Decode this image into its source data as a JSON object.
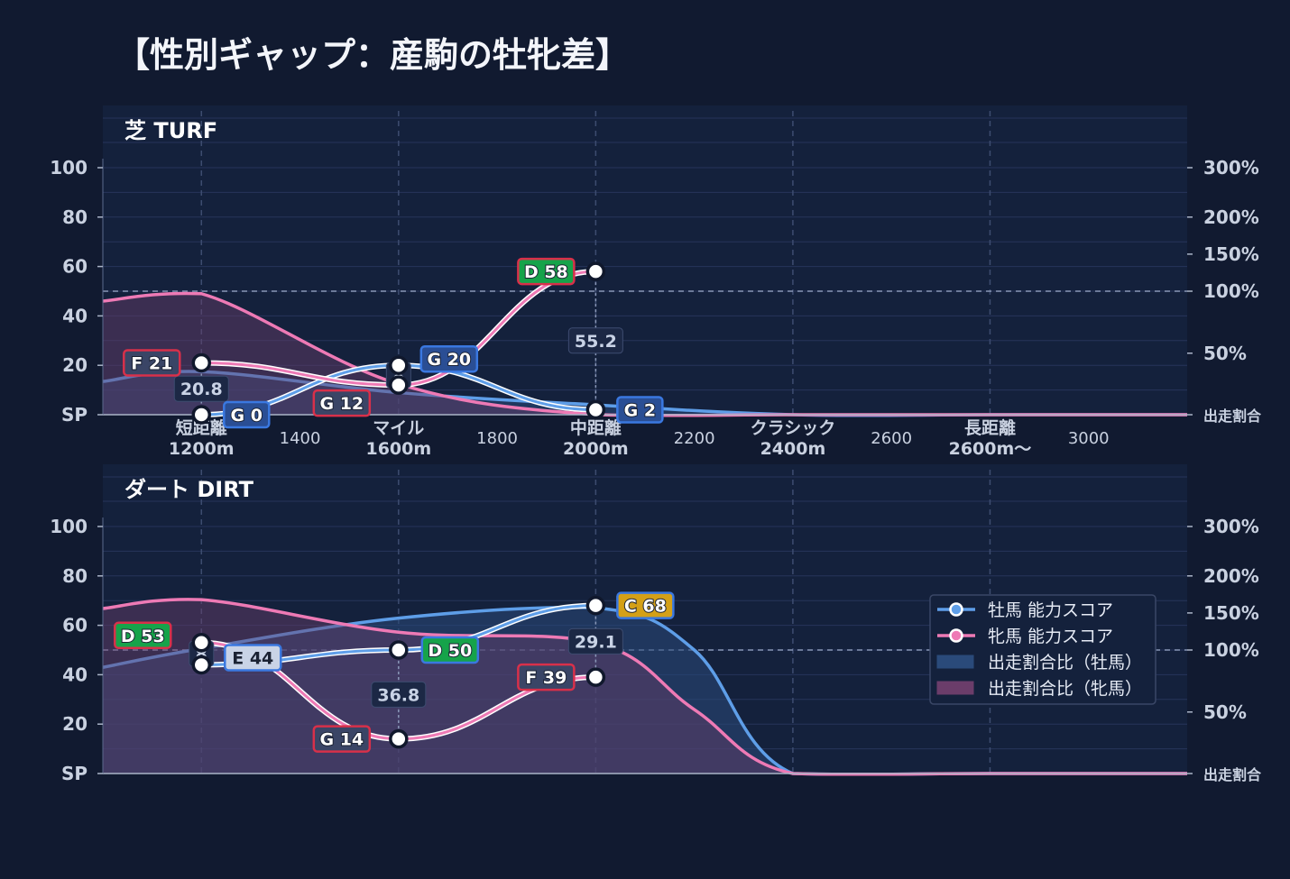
{
  "title": "【性別ギャップ：産駒の牡牝差】",
  "chart_data": [
    {
      "type": "line",
      "panel_title": "芝 TURF",
      "x_categories": [
        {
          "label": "短距離",
          "sub": "1200m",
          "x": 1200
        },
        {
          "label": "マイル",
          "sub": "1600m",
          "x": 1600
        },
        {
          "label": "中距離",
          "sub": "2000m",
          "x": 2000
        },
        {
          "label": "クラシック",
          "sub": "2400m",
          "x": 2400
        },
        {
          "label": "長距離",
          "sub": "2600m〜",
          "x": 2800
        }
      ],
      "x_ticks": [
        {
          "label": "1400",
          "x": 1400
        },
        {
          "label": "1800",
          "x": 1800
        },
        {
          "label": "2200",
          "x": 2200
        },
        {
          "label": "2600",
          "x": 2600
        },
        {
          "label": "3000",
          "x": 3000
        }
      ],
      "xlim": [
        1000,
        3200
      ],
      "y_left_ticks": [
        "SP",
        "20",
        "40",
        "60",
        "80",
        "100"
      ],
      "ylim": [
        0,
        100
      ],
      "y_right_ticks": [
        "出走割合",
        "50%",
        "100%",
        "150%",
        "200%",
        "300%"
      ],
      "right_tick_values": [
        0,
        50,
        100,
        150,
        200,
        300
      ],
      "y2lim": [
        0,
        300
      ],
      "series": [
        {
          "name": "牡馬 能力スコア",
          "color": "#5e9ee8",
          "x": [
            1200,
            1600,
            2000
          ],
          "values": [
            0,
            20,
            2
          ],
          "labels": [
            "G 0",
            "G 20",
            "G 2"
          ],
          "badge_colors": [
            "#2a4e94",
            "#2a4e94",
            "#2a4e94"
          ]
        },
        {
          "name": "牝馬 能力スコア",
          "color": "#ee7ab5",
          "x": [
            1200,
            1600,
            2000
          ],
          "values": [
            21,
            12,
            58
          ],
          "labels": [
            "F 21",
            "G 12",
            "D 58"
          ],
          "badge_colors": [
            "#3a4566",
            "#3a4566",
            "#16a34a"
          ]
        }
      ],
      "gaps": [
        {
          "x": 1200,
          "label": "20.8"
        },
        {
          "x": 1600,
          "label": "8"
        },
        {
          "x": 2000,
          "label": "55.2"
        }
      ],
      "area_series": [
        {
          "name": "出走割合比（牡馬）",
          "x": [
            1000,
            1200,
            1600,
            2000,
            2400,
            2800,
            3200
          ],
          "values": [
            27,
            35,
            18,
            8,
            0,
            0,
            0
          ]
        },
        {
          "name": "出走割合比（牝馬）",
          "x": [
            1000,
            1200,
            1600,
            2000,
            2400,
            2800,
            3200
          ],
          "values": [
            92,
            98,
            25,
            0,
            0,
            0,
            0
          ]
        }
      ]
    },
    {
      "type": "line",
      "panel_title": "ダート DIRT",
      "x_categories": [],
      "x_ticks": [],
      "xlim": [
        1000,
        3200
      ],
      "y_left_ticks": [
        "SP",
        "20",
        "40",
        "60",
        "80",
        "100"
      ],
      "ylim": [
        0,
        100
      ],
      "y_right_ticks": [
        "出走割合",
        "50%",
        "100%",
        "150%",
        "200%",
        "300%"
      ],
      "right_tick_values": [
        0,
        50,
        100,
        150,
        200,
        300
      ],
      "y2lim": [
        0,
        300
      ],
      "series": [
        {
          "name": "牡馬 能力スコア",
          "color": "#5e9ee8",
          "x": [
            1200,
            1600,
            2000
          ],
          "values": [
            44,
            50,
            68
          ],
          "labels": [
            "E 44",
            "D 50",
            "C 68"
          ],
          "badge_colors": [
            "#c9d3e6",
            "#16a34a",
            "#d4a017"
          ]
        },
        {
          "name": "牝馬 能力スコア",
          "color": "#ee7ab5",
          "x": [
            1200,
            1600,
            2000
          ],
          "values": [
            53,
            14,
            39
          ],
          "labels": [
            "D 53",
            "G 14",
            "F 39"
          ],
          "badge_colors": [
            "#16a34a",
            "#3a4566",
            "#3a4566"
          ]
        }
      ],
      "gaps": [
        {
          "x": 1200,
          "label": "8"
        },
        {
          "x": 1600,
          "label": "36.8"
        },
        {
          "x": 2000,
          "label": "29.1"
        }
      ],
      "area_series": [
        {
          "name": "出走割合比（牡馬）",
          "x": [
            1000,
            1200,
            1600,
            2000,
            2200,
            2400,
            2800,
            3200
          ],
          "values": [
            86,
            102,
            143,
            157,
            100,
            0,
            0,
            0
          ]
        },
        {
          "name": "出走割合比（牝馬）",
          "x": [
            1000,
            1200,
            1600,
            2000,
            2200,
            2400,
            2800,
            3200
          ],
          "values": [
            156,
            168,
            124,
            110,
            52,
            0,
            0,
            0
          ]
        }
      ]
    }
  ],
  "legend": [
    {
      "label": "牡馬 能力スコア",
      "kind": "line",
      "color": "#5e9ee8"
    },
    {
      "label": "牝馬 能力スコア",
      "kind": "line",
      "color": "#ee7ab5"
    },
    {
      "label": "出走割合比（牡馬）",
      "kind": "area",
      "color": "#2a4a7a"
    },
    {
      "label": "出走割合比（牝馬）",
      "kind": "area",
      "color": "#6b3d6a"
    }
  ]
}
